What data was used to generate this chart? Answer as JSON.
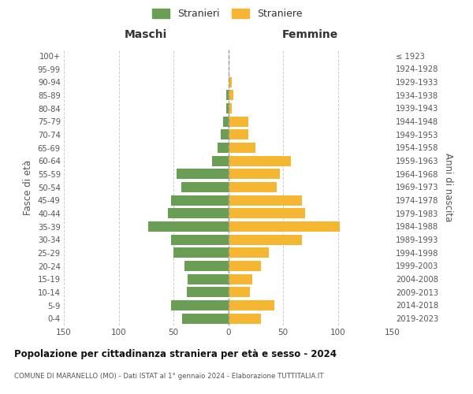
{
  "age_groups": [
    "0-4",
    "5-9",
    "10-14",
    "15-19",
    "20-24",
    "25-29",
    "30-34",
    "35-39",
    "40-44",
    "45-49",
    "50-54",
    "55-59",
    "60-64",
    "65-69",
    "70-74",
    "75-79",
    "80-84",
    "85-89",
    "90-94",
    "95-99",
    "100+"
  ],
  "birth_years": [
    "2019-2023",
    "2014-2018",
    "2009-2013",
    "2004-2008",
    "1999-2003",
    "1994-1998",
    "1989-1993",
    "1984-1988",
    "1979-1983",
    "1974-1978",
    "1969-1973",
    "1964-1968",
    "1959-1963",
    "1954-1958",
    "1949-1953",
    "1944-1948",
    "1939-1943",
    "1934-1938",
    "1929-1933",
    "1924-1928",
    "≤ 1923"
  ],
  "maschi": [
    42,
    52,
    38,
    37,
    40,
    50,
    52,
    73,
    55,
    52,
    43,
    47,
    15,
    10,
    7,
    5,
    2,
    2,
    0,
    0,
    0
  ],
  "femmine": [
    30,
    42,
    20,
    22,
    30,
    37,
    67,
    102,
    70,
    67,
    44,
    47,
    57,
    25,
    18,
    18,
    3,
    5,
    3,
    0,
    0
  ],
  "color_maschi": "#6a9e55",
  "color_femmine": "#f5b731",
  "title": "Popolazione per cittadinanza straniera per età e sesso - 2024",
  "subtitle": "COMUNE DI MARANELLO (MO) - Dati ISTAT al 1° gennaio 2024 - Elaborazione TUTTITALIA.IT",
  "label_maschi": "Maschi",
  "label_femmine": "Femmine",
  "ylabel_left": "Fasce di età",
  "ylabel_right": "Anni di nascita",
  "xlim": 150,
  "legend_stranieri": "Stranieri",
  "legend_straniere": "Straniere",
  "background_color": "#ffffff",
  "grid_color": "#cccccc"
}
